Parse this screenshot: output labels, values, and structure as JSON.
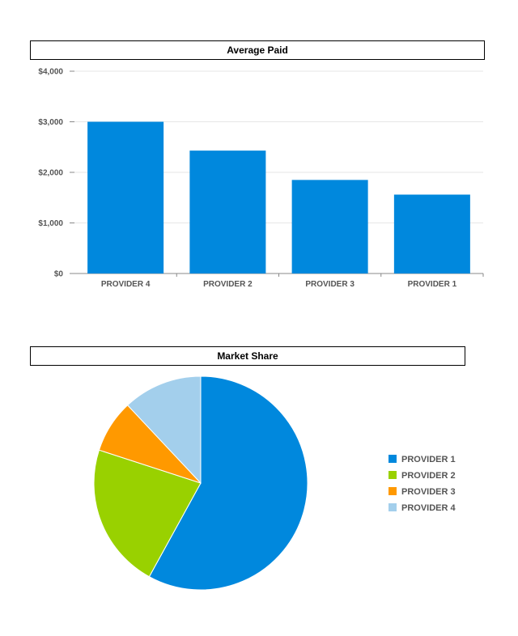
{
  "chart_data": [
    {
      "type": "bar",
      "title": "Average Paid",
      "categories": [
        "PROVIDER 4",
        "PROVIDER 2",
        "PROVIDER 3",
        "PROVIDER 1"
      ],
      "values": [
        3000,
        2430,
        1850,
        1560
      ],
      "ylim": [
        0,
        4000
      ],
      "yticks": [
        0,
        1000,
        2000,
        3000,
        4000
      ],
      "ytick_labels": [
        "$0",
        "$1,000",
        "$2,000",
        "$3,000",
        "$4,000"
      ],
      "xlabel": "",
      "ylabel": "",
      "color": "#0088DD",
      "grid": true,
      "legend": "none"
    },
    {
      "type": "pie",
      "title": "Market Share",
      "labels": [
        "PROVIDER 1",
        "PROVIDER 2",
        "PROVIDER 3",
        "PROVIDER 4"
      ],
      "values": [
        58,
        22,
        8,
        12
      ],
      "colors": [
        "#0088DD",
        "#99D100",
        "#FF9900",
        "#A3CFEC"
      ],
      "legend": "right"
    }
  ]
}
